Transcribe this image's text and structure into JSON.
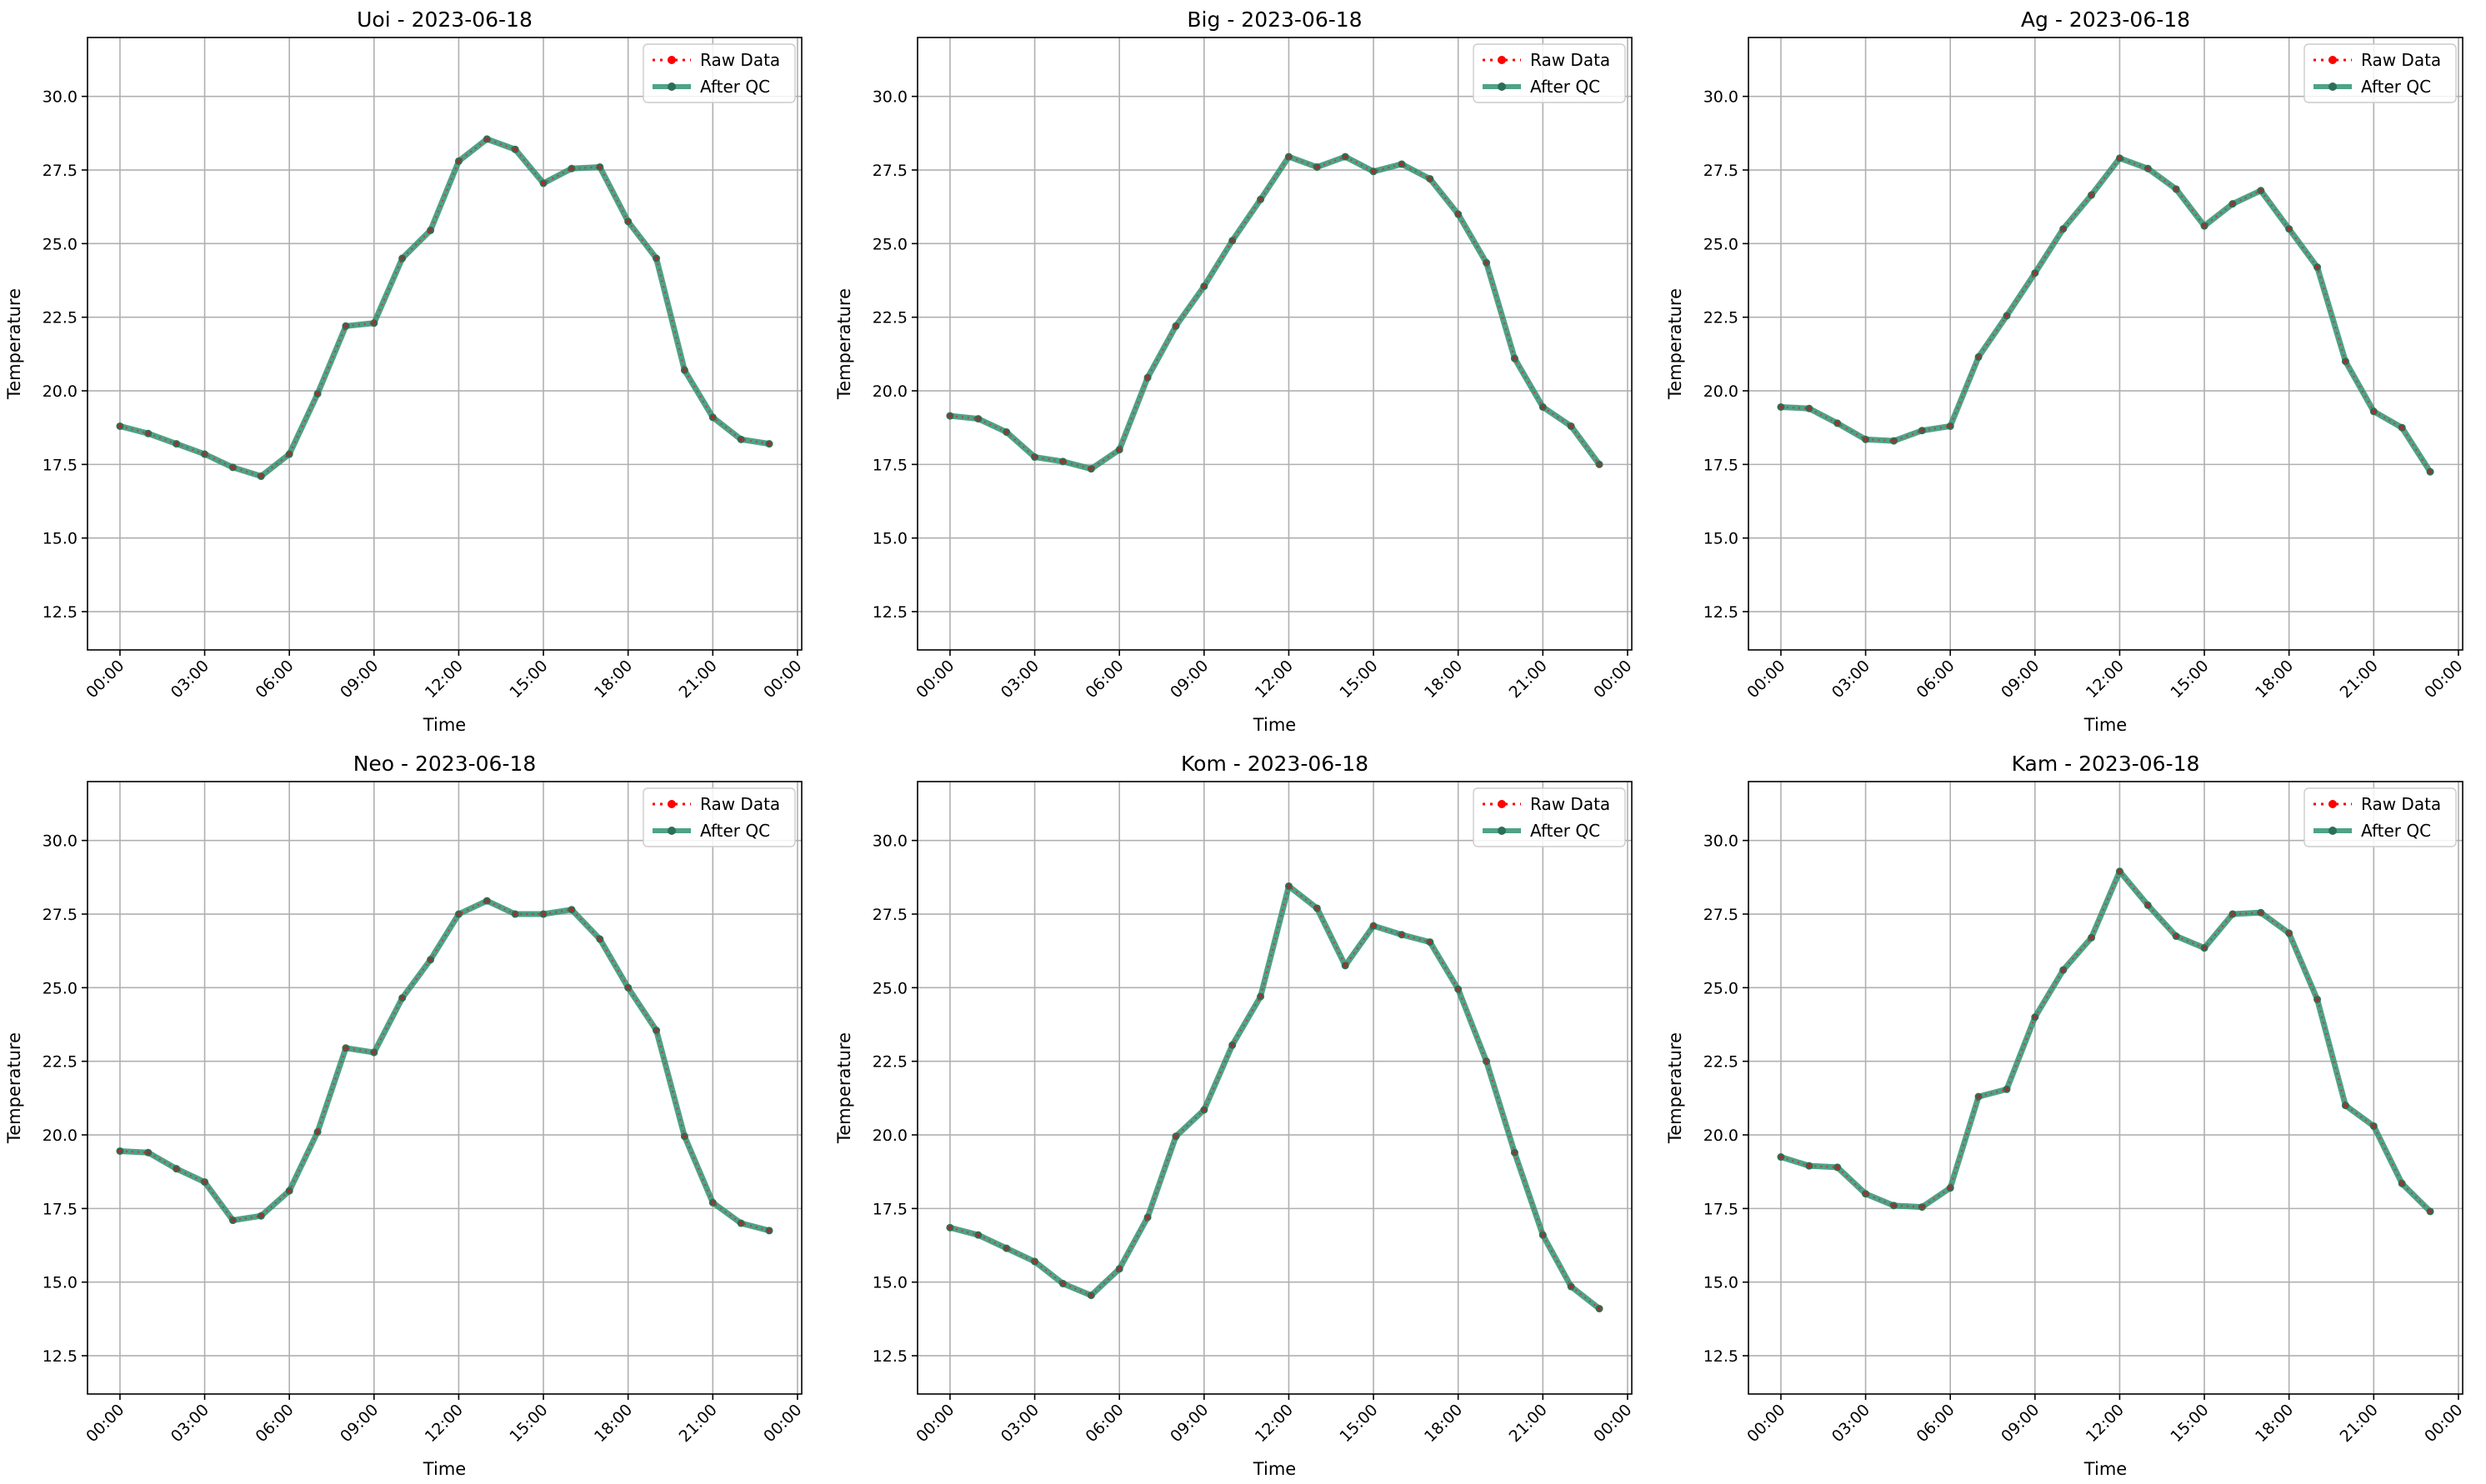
{
  "chart_data": [
    {
      "type": "line",
      "title": "Uoi - 2023-06-18",
      "xlabel": "Time",
      "ylabel": "Temperature",
      "x_tick_labels": [
        "00:00",
        "03:00",
        "06:00",
        "09:00",
        "12:00",
        "15:00",
        "18:00",
        "21:00",
        "00:00"
      ],
      "y_tick_labels": [
        "12.5",
        "15.0",
        "17.5",
        "20.0",
        "22.5",
        "25.0",
        "27.5",
        "30.0"
      ],
      "ylim": [
        11.2,
        32.0
      ],
      "grid": true,
      "legend_position": "top-right",
      "legend": [
        "Raw Data",
        "After QC"
      ],
      "x": [
        "00:00",
        "01:00",
        "02:00",
        "03:00",
        "04:00",
        "05:00",
        "06:00",
        "07:00",
        "08:00",
        "09:00",
        "10:00",
        "11:00",
        "12:00",
        "13:00",
        "14:00",
        "15:00",
        "16:00",
        "17:00",
        "18:00",
        "19:00",
        "20:00",
        "21:00",
        "22:00",
        "23:00"
      ],
      "series": [
        {
          "name": "Raw Data",
          "values": [
            18.8,
            18.55,
            18.2,
            17.85,
            17.4,
            17.1,
            17.85,
            19.9,
            22.2,
            22.3,
            24.5,
            25.45,
            27.8,
            28.55,
            28.2,
            27.05,
            27.55,
            27.6,
            25.75,
            24.5,
            20.7,
            19.1,
            18.35,
            18.2
          ]
        },
        {
          "name": "After QC",
          "values": [
            18.8,
            18.55,
            18.2,
            17.85,
            17.4,
            17.1,
            17.85,
            19.9,
            22.2,
            22.3,
            24.5,
            25.45,
            27.8,
            28.55,
            28.2,
            27.05,
            27.55,
            27.6,
            25.75,
            24.5,
            20.7,
            19.1,
            18.35,
            18.2
          ]
        }
      ]
    },
    {
      "type": "line",
      "title": "Big - 2023-06-18",
      "xlabel": "Time",
      "ylabel": "Temperature",
      "x_tick_labels": [
        "00:00",
        "03:00",
        "06:00",
        "09:00",
        "12:00",
        "15:00",
        "18:00",
        "21:00",
        "00:00"
      ],
      "y_tick_labels": [
        "12.5",
        "15.0",
        "17.5",
        "20.0",
        "22.5",
        "25.0",
        "27.5",
        "30.0"
      ],
      "ylim": [
        11.2,
        32.0
      ],
      "grid": true,
      "legend_position": "top-right",
      "legend": [
        "Raw Data",
        "After QC"
      ],
      "x": [
        "00:00",
        "01:00",
        "02:00",
        "03:00",
        "04:00",
        "05:00",
        "06:00",
        "07:00",
        "08:00",
        "09:00",
        "10:00",
        "11:00",
        "12:00",
        "13:00",
        "14:00",
        "15:00",
        "16:00",
        "17:00",
        "18:00",
        "19:00",
        "20:00",
        "21:00",
        "22:00",
        "23:00"
      ],
      "series": [
        {
          "name": "Raw Data",
          "values": [
            19.15,
            19.05,
            18.6,
            17.75,
            17.6,
            17.35,
            18.0,
            20.45,
            22.2,
            23.55,
            25.1,
            26.5,
            27.95,
            27.6,
            27.95,
            27.45,
            27.7,
            27.2,
            26.0,
            24.35,
            21.1,
            19.45,
            18.8,
            17.5
          ]
        },
        {
          "name": "After QC",
          "values": [
            19.15,
            19.05,
            18.6,
            17.75,
            17.6,
            17.35,
            18.0,
            20.45,
            22.2,
            23.55,
            25.1,
            26.5,
            27.95,
            27.6,
            27.95,
            27.45,
            27.7,
            27.2,
            26.0,
            24.35,
            21.1,
            19.45,
            18.8,
            17.5
          ]
        }
      ]
    },
    {
      "type": "line",
      "title": "Ag - 2023-06-18",
      "xlabel": "Time",
      "ylabel": "Temperature",
      "x_tick_labels": [
        "00:00",
        "03:00",
        "06:00",
        "09:00",
        "12:00",
        "15:00",
        "18:00",
        "21:00",
        "00:00"
      ],
      "y_tick_labels": [
        "12.5",
        "15.0",
        "17.5",
        "20.0",
        "22.5",
        "25.0",
        "27.5",
        "30.0"
      ],
      "ylim": [
        11.2,
        32.0
      ],
      "grid": true,
      "legend_position": "top-right",
      "legend": [
        "Raw Data",
        "After QC"
      ],
      "x": [
        "00:00",
        "01:00",
        "02:00",
        "03:00",
        "04:00",
        "05:00",
        "06:00",
        "07:00",
        "08:00",
        "09:00",
        "10:00",
        "11:00",
        "12:00",
        "13:00",
        "14:00",
        "15:00",
        "16:00",
        "17:00",
        "18:00",
        "19:00",
        "20:00",
        "21:00",
        "22:00",
        "23:00"
      ],
      "series": [
        {
          "name": "Raw Data",
          "values": [
            19.45,
            19.4,
            18.9,
            18.35,
            18.3,
            18.65,
            18.8,
            21.15,
            22.55,
            24.0,
            25.5,
            26.65,
            27.9,
            27.55,
            26.85,
            25.6,
            26.35,
            26.8,
            25.5,
            24.2,
            21.0,
            19.3,
            18.75,
            17.25
          ]
        },
        {
          "name": "After QC",
          "values": [
            19.45,
            19.4,
            18.9,
            18.35,
            18.3,
            18.65,
            18.8,
            21.15,
            22.55,
            24.0,
            25.5,
            26.65,
            27.9,
            27.55,
            26.85,
            25.6,
            26.35,
            26.8,
            25.5,
            24.2,
            21.0,
            19.3,
            18.75,
            17.25
          ]
        }
      ]
    },
    {
      "type": "line",
      "title": "Neo - 2023-06-18",
      "xlabel": "Time",
      "ylabel": "Temperature",
      "x_tick_labels": [
        "00:00",
        "03:00",
        "06:00",
        "09:00",
        "12:00",
        "15:00",
        "18:00",
        "21:00",
        "00:00"
      ],
      "y_tick_labels": [
        "12.5",
        "15.0",
        "17.5",
        "20.0",
        "22.5",
        "25.0",
        "27.5",
        "30.0"
      ],
      "ylim": [
        11.2,
        32.0
      ],
      "grid": true,
      "legend_position": "top-right",
      "legend": [
        "Raw Data",
        "After QC"
      ],
      "x": [
        "00:00",
        "01:00",
        "02:00",
        "03:00",
        "04:00",
        "05:00",
        "06:00",
        "07:00",
        "08:00",
        "09:00",
        "10:00",
        "11:00",
        "12:00",
        "13:00",
        "14:00",
        "15:00",
        "16:00",
        "17:00",
        "18:00",
        "19:00",
        "20:00",
        "21:00",
        "22:00",
        "23:00"
      ],
      "series": [
        {
          "name": "Raw Data",
          "values": [
            19.45,
            19.4,
            18.85,
            18.4,
            17.1,
            17.25,
            18.1,
            20.1,
            22.95,
            22.8,
            24.65,
            25.95,
            27.5,
            27.95,
            27.5,
            27.5,
            27.65,
            26.65,
            25.0,
            23.55,
            19.95,
            17.7,
            17.0,
            16.75
          ]
        },
        {
          "name": "After QC",
          "values": [
            19.45,
            19.4,
            18.85,
            18.4,
            17.1,
            17.25,
            18.1,
            20.1,
            22.95,
            22.8,
            24.65,
            25.95,
            27.5,
            27.95,
            27.5,
            27.5,
            27.65,
            26.65,
            25.0,
            23.55,
            19.95,
            17.7,
            17.0,
            16.75
          ]
        }
      ]
    },
    {
      "type": "line",
      "title": "Kom - 2023-06-18",
      "xlabel": "Time",
      "ylabel": "Temperature",
      "x_tick_labels": [
        "00:00",
        "03:00",
        "06:00",
        "09:00",
        "12:00",
        "15:00",
        "18:00",
        "21:00",
        "00:00"
      ],
      "y_tick_labels": [
        "12.5",
        "15.0",
        "17.5",
        "20.0",
        "22.5",
        "25.0",
        "27.5",
        "30.0"
      ],
      "ylim": [
        11.2,
        32.0
      ],
      "grid": true,
      "legend_position": "top-right",
      "legend": [
        "Raw Data",
        "After QC"
      ],
      "x": [
        "00:00",
        "01:00",
        "02:00",
        "03:00",
        "04:00",
        "05:00",
        "06:00",
        "07:00",
        "08:00",
        "09:00",
        "10:00",
        "11:00",
        "12:00",
        "13:00",
        "14:00",
        "15:00",
        "16:00",
        "17:00",
        "18:00",
        "19:00",
        "20:00",
        "21:00",
        "22:00",
        "23:00"
      ],
      "series": [
        {
          "name": "Raw Data",
          "values": [
            16.85,
            16.6,
            16.15,
            15.7,
            14.95,
            14.55,
            15.45,
            17.2,
            19.95,
            20.85,
            23.05,
            24.7,
            28.45,
            27.7,
            25.75,
            27.1,
            26.8,
            26.55,
            24.95,
            22.5,
            19.4,
            16.6,
            14.85,
            14.1
          ]
        },
        {
          "name": "After QC",
          "values": [
            16.85,
            16.6,
            16.15,
            15.7,
            14.95,
            14.55,
            15.45,
            17.2,
            19.95,
            20.85,
            23.05,
            24.7,
            28.45,
            27.7,
            25.75,
            27.1,
            26.8,
            26.55,
            24.95,
            22.5,
            19.4,
            16.6,
            14.85,
            14.1
          ]
        }
      ]
    },
    {
      "type": "line",
      "title": "Kam - 2023-06-18",
      "xlabel": "Time",
      "ylabel": "Temperature",
      "x_tick_labels": [
        "00:00",
        "03:00",
        "06:00",
        "09:00",
        "12:00",
        "15:00",
        "18:00",
        "21:00",
        "00:00"
      ],
      "y_tick_labels": [
        "12.5",
        "15.0",
        "17.5",
        "20.0",
        "22.5",
        "25.0",
        "27.5",
        "30.0"
      ],
      "ylim": [
        11.2,
        32.0
      ],
      "grid": true,
      "legend_position": "top-right",
      "legend": [
        "Raw Data",
        "After QC"
      ],
      "x": [
        "00:00",
        "01:00",
        "02:00",
        "03:00",
        "04:00",
        "05:00",
        "06:00",
        "07:00",
        "08:00",
        "09:00",
        "10:00",
        "11:00",
        "12:00",
        "13:00",
        "14:00",
        "15:00",
        "16:00",
        "17:00",
        "18:00",
        "19:00",
        "20:00",
        "21:00",
        "22:00",
        "23:00"
      ],
      "series": [
        {
          "name": "Raw Data",
          "values": [
            19.25,
            18.95,
            18.9,
            18.0,
            17.6,
            17.55,
            18.2,
            21.3,
            21.55,
            24.0,
            25.6,
            26.7,
            28.95,
            27.8,
            26.75,
            26.35,
            27.5,
            27.55,
            26.85,
            24.6,
            21.0,
            20.3,
            18.35,
            17.4
          ]
        },
        {
          "name": "After QC",
          "values": [
            19.25,
            18.95,
            18.9,
            18.0,
            17.6,
            17.55,
            18.2,
            21.3,
            21.55,
            24.0,
            25.6,
            26.7,
            28.95,
            27.8,
            26.75,
            26.35,
            27.5,
            27.55,
            26.85,
            24.6,
            21.0,
            20.3,
            18.35,
            17.4
          ]
        }
      ]
    }
  ],
  "colors": {
    "raw": "#ff0000",
    "qc": "#2f9373",
    "qc_marker": "#2e6e58",
    "grid": "#b0b0b0",
    "axes": "#000000"
  }
}
